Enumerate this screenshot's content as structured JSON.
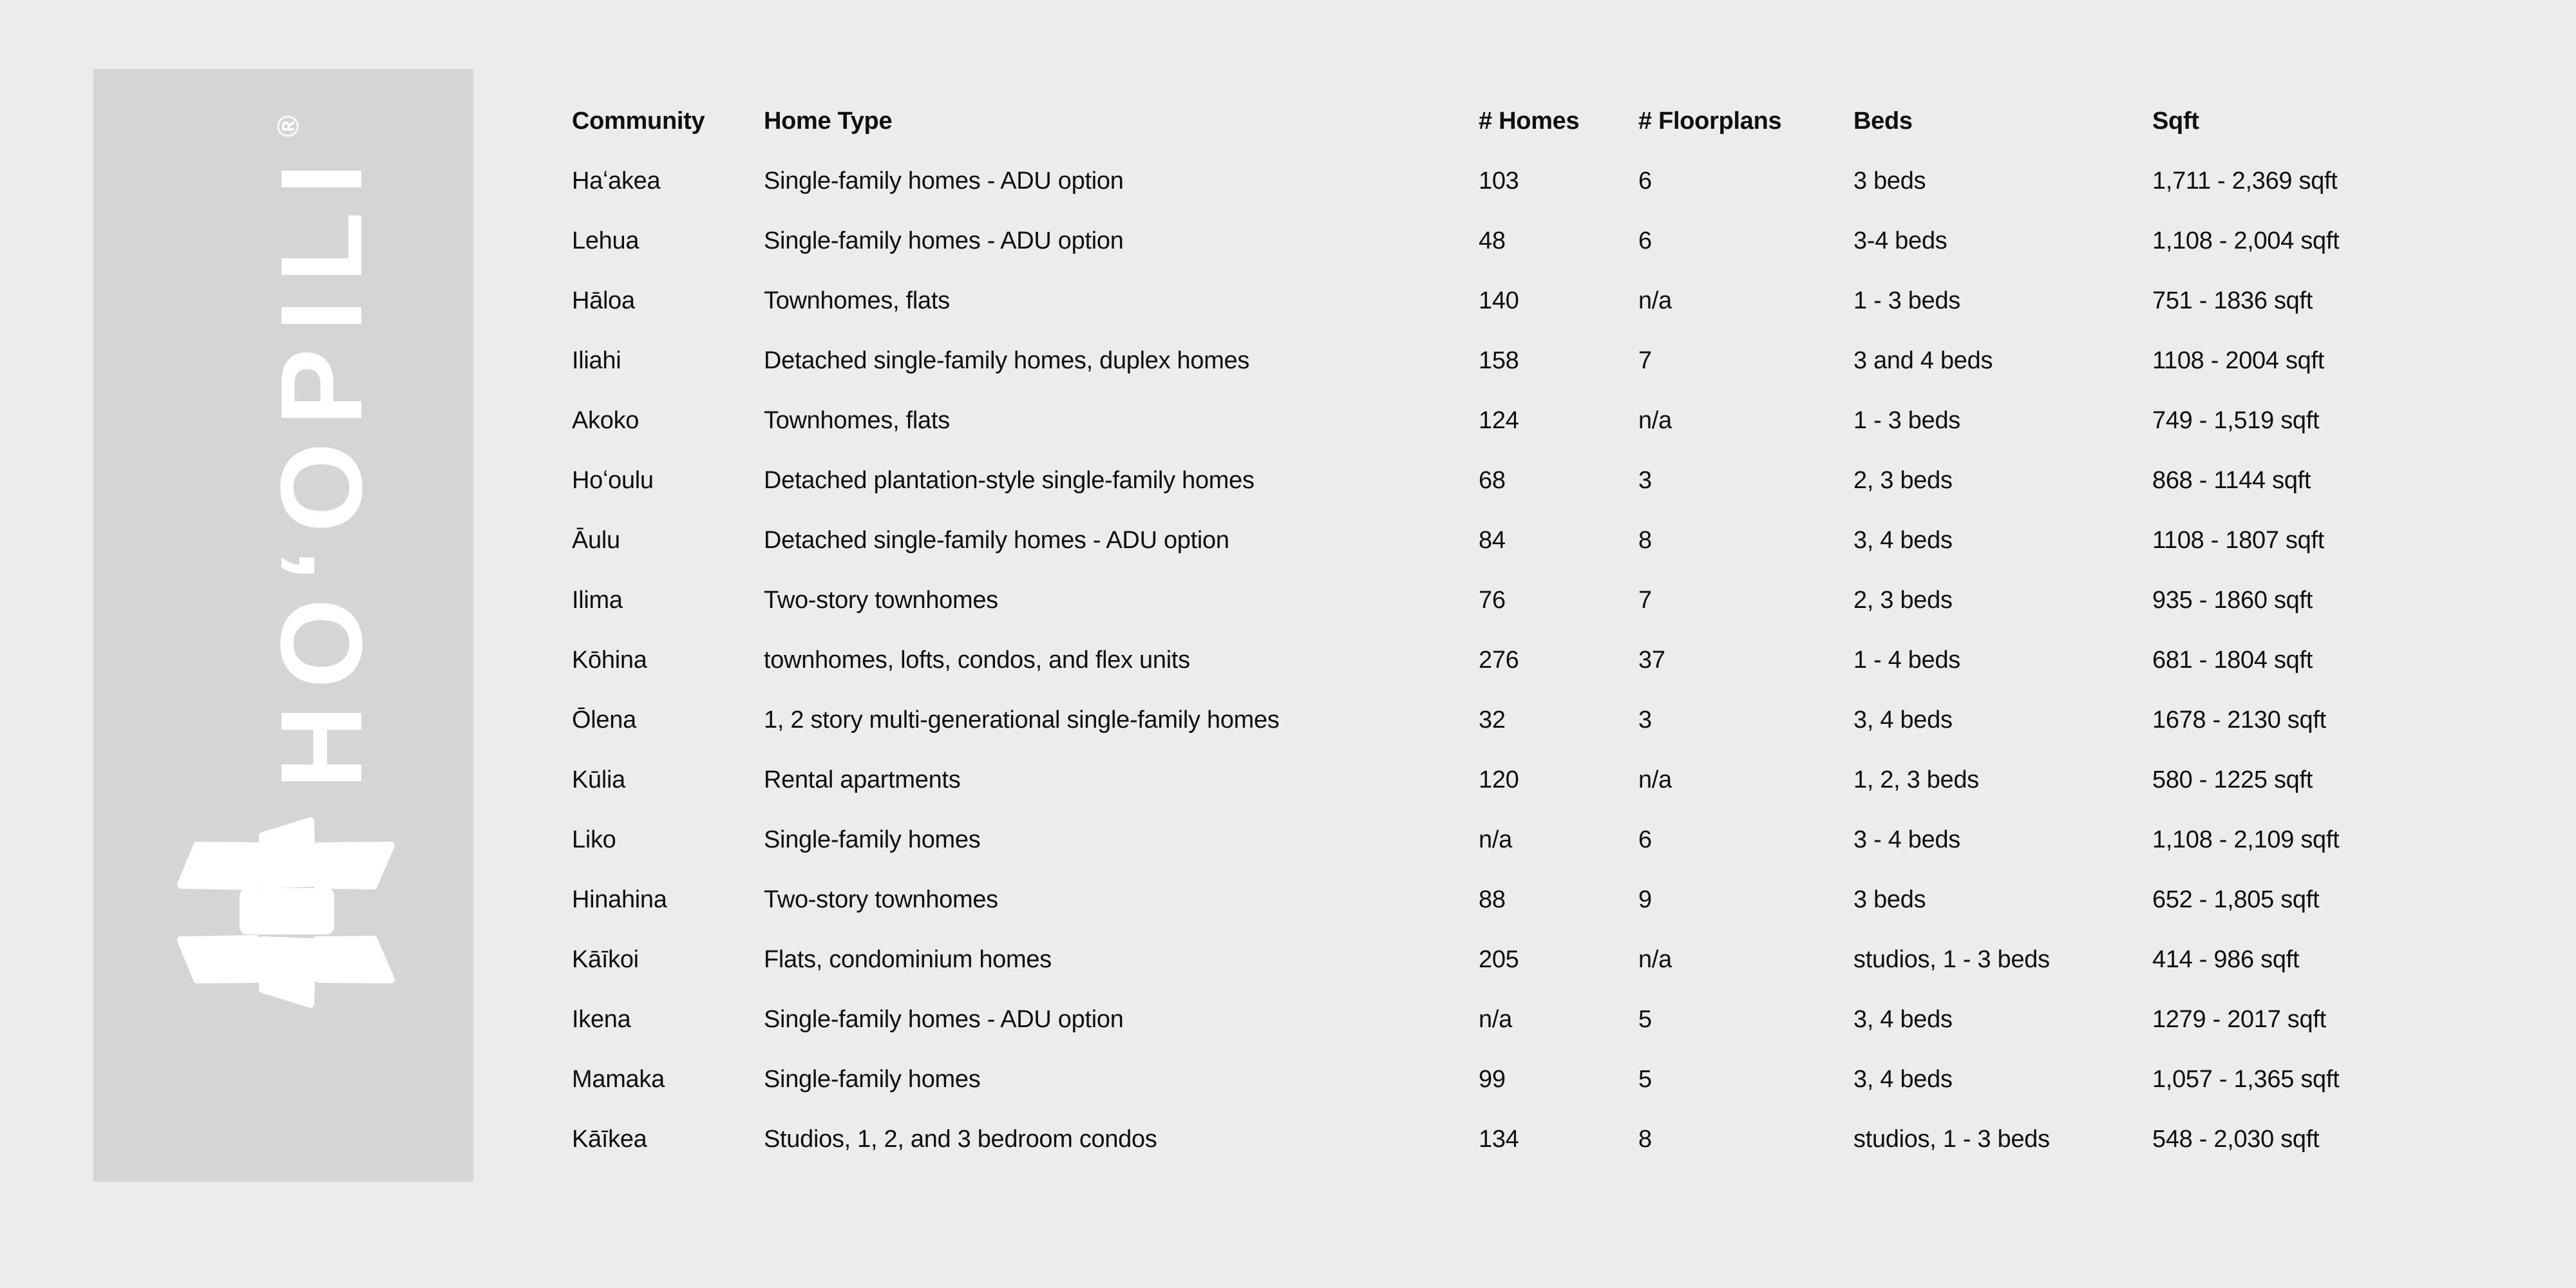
{
  "page": {
    "background": "#ececeb"
  },
  "logo": {
    "panel_color": "#d5d6d4",
    "text_color": "#ffffff",
    "brand": "HOʻOPILI",
    "registered_mark": "®",
    "icon": "pinwheel-icon"
  },
  "table": {
    "headers": [
      "Community",
      "Home Type",
      "# Homes",
      "# Floorplans",
      "Beds",
      "Sqft"
    ],
    "rows": [
      [
        "Haʻakea",
        "Single-family homes - ADU option",
        "103",
        "6",
        "3 beds",
        "1,711 - 2,369 sqft"
      ],
      [
        "Lehua",
        "Single-family homes - ADU option",
        "48",
        "6",
        "3-4 beds",
        "1,108 - 2,004 sqft"
      ],
      [
        "Hāloa",
        "Townhomes, flats",
        "140",
        "n/a",
        "1 - 3 beds",
        "751 - 1836 sqft"
      ],
      [
        "Iliahi",
        "Detached single-family homes, duplex homes",
        "158",
        "7",
        "3 and 4 beds",
        "1108 - 2004 sqft"
      ],
      [
        "Akoko",
        "Townhomes, flats",
        "124",
        "n/a",
        "1 - 3 beds",
        "749 - 1,519 sqft"
      ],
      [
        "Hoʻoulu",
        "Detached plantation-style single-family homes",
        "68",
        "3",
        "2, 3 beds",
        "868 - 1144 sqft"
      ],
      [
        "Āulu",
        "Detached single-family homes - ADU option",
        "84",
        "8",
        "3, 4 beds",
        "1108 - 1807 sqft"
      ],
      [
        "Ilima",
        "Two-story townhomes",
        "76",
        "7",
        "2, 3 beds",
        "935 - 1860 sqft"
      ],
      [
        "Kōhina",
        "townhomes, lofts, condos, and flex units",
        "276",
        "37",
        "1 - 4 beds",
        "681 - 1804 sqft"
      ],
      [
        "Ōlena",
        "1, 2 story multi-generational single-family homes",
        "32",
        "3",
        "3, 4 beds",
        "1678 - 2130 sqft"
      ],
      [
        "Kūlia",
        "Rental apartments",
        "120",
        "n/a",
        "1, 2, 3 beds",
        "580 - 1225 sqft"
      ],
      [
        "Liko",
        "Single-family homes",
        "n/a",
        "6",
        "3 - 4 beds",
        "1,108 - 2,109 sqft"
      ],
      [
        "Hinahina",
        "Two-story townhomes",
        "88",
        "9",
        "3 beds",
        "652 - 1,805 sqft"
      ],
      [
        "Kāīkoi",
        "Flats, condominium homes",
        "205",
        "n/a",
        "studios, 1 - 3 beds",
        "414 - 986 sqft"
      ],
      [
        "Ikena",
        "Single-family homes - ADU option",
        "n/a",
        "5",
        "3, 4 beds",
        "1279 - 2017 sqft"
      ],
      [
        "Mamaka",
        "Single-family homes",
        "99",
        "5",
        "3, 4 beds",
        "1,057 - 1,365 sqft"
      ],
      [
        "Kāīkea",
        "Studios, 1, 2, and 3 bedroom condos",
        "134",
        "8",
        "studios, 1 - 3 beds",
        "548 - 2,030 sqft"
      ]
    ]
  }
}
